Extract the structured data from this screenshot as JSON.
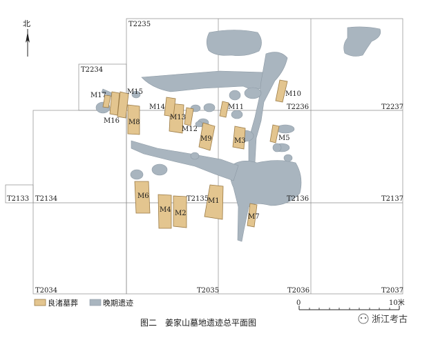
{
  "north_label": "北",
  "grid_labels": {
    "T2235": "T2235",
    "T2234": "T2234",
    "T2236": "T2236",
    "T2237": "T2237",
    "T2133": "T2133",
    "T2134": "T2134",
    "T2135": "T2135",
    "T2136": "T2136",
    "T2137": "T2137",
    "T2034": "T2034",
    "T2035": "T2035",
    "T2036": "T2036",
    "T2037": "T2037"
  },
  "tombs": {
    "M1": "M1",
    "M2": "M2",
    "M3": "M3",
    "M4": "M4",
    "M5": "M5",
    "M6": "M6",
    "M7": "M7",
    "M8": "M8",
    "M9": "M9",
    "M10": "M10",
    "M11": "M11",
    "M12": "M12",
    "M13": "M13",
    "M14": "M14",
    "M15": "M15",
    "M16": "M16",
    "M17": "M17"
  },
  "legend": {
    "liangzhu_label": "良渚墓葬",
    "late_label": "晚期遗迹",
    "liangzhu_color": "#e3c58f",
    "late_color": "#a9b5bf"
  },
  "scale": {
    "start": "0",
    "end": "10米"
  },
  "caption": "图二　姜家山墓地遗迹总平面图",
  "watermark": "浙江考古"
}
